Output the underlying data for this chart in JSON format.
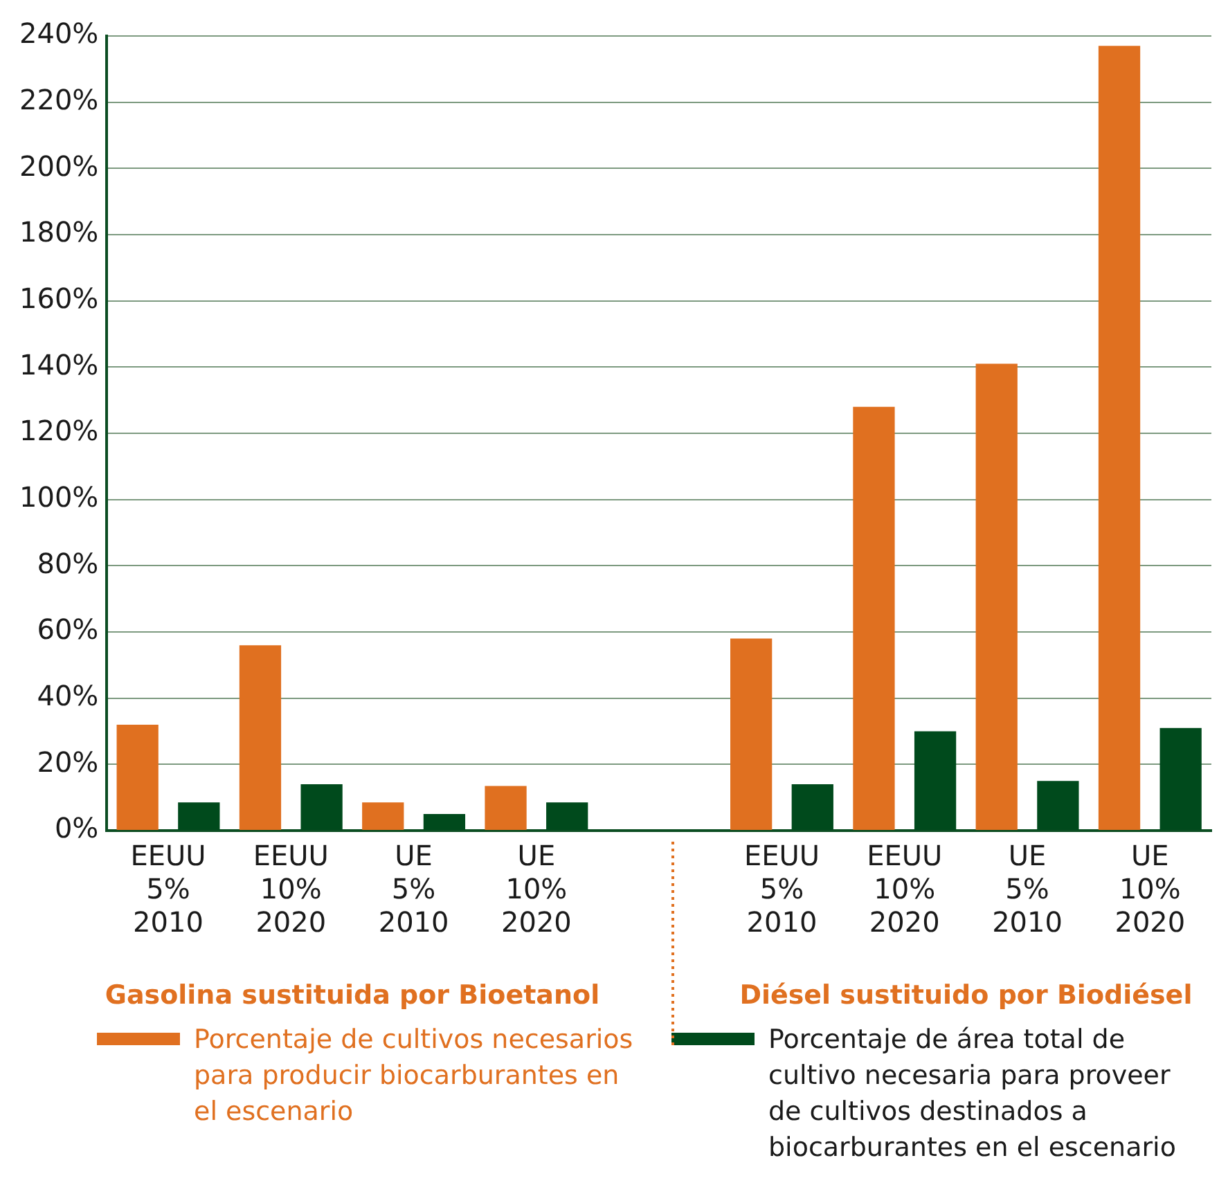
{
  "chart_data": {
    "type": "bar",
    "categories": [
      "EEUU\n5%\n2010",
      "EEUU\n10%\n2020",
      "UE\n5%\n2010",
      "UE\n10%\n2020",
      null,
      "EEUU\n5%\n2010",
      "EEUU\n10%\n2020",
      "UE\n5%\n2010",
      "UE\n10%\n2020"
    ],
    "series": [
      {
        "name": "Porcentaje de cultivos necesarios para producir biocarburantes en el escenario",
        "color": "#e07020",
        "values": [
          32,
          56,
          8.5,
          13.5,
          null,
          58,
          128,
          141,
          237
        ]
      },
      {
        "name": "Porcentaje de área total de cultivo necesaria para proveer de cultivos destinados a biocarburantes en el escenario",
        "color": "#004a1c",
        "values": [
          8.5,
          14,
          5,
          8.5,
          null,
          14,
          30,
          15,
          31
        ]
      }
    ],
    "ylim": [
      0,
      240
    ],
    "yticks": [
      {
        "value": 0,
        "label": "0%"
      },
      {
        "value": 20,
        "label": "20%"
      },
      {
        "value": 40,
        "label": "40%"
      },
      {
        "value": 60,
        "label": "60%"
      },
      {
        "value": 80,
        "label": "80%"
      },
      {
        "value": 100,
        "label": "100%"
      },
      {
        "value": 120,
        "label": "120%"
      },
      {
        "value": 140,
        "label": "140%"
      },
      {
        "value": 160,
        "label": "160%"
      },
      {
        "value": 180,
        "label": "180%"
      },
      {
        "value": 200,
        "label": "200%"
      },
      {
        "value": 220,
        "label": "220%"
      },
      {
        "value": 240,
        "label": "240%"
      }
    ],
    "grid": "y",
    "legend": "bottom",
    "annotations": [
      "Gasolina sustituida por Bioetanol",
      "Diésel sustituido por Biodiésel"
    ]
  }
}
